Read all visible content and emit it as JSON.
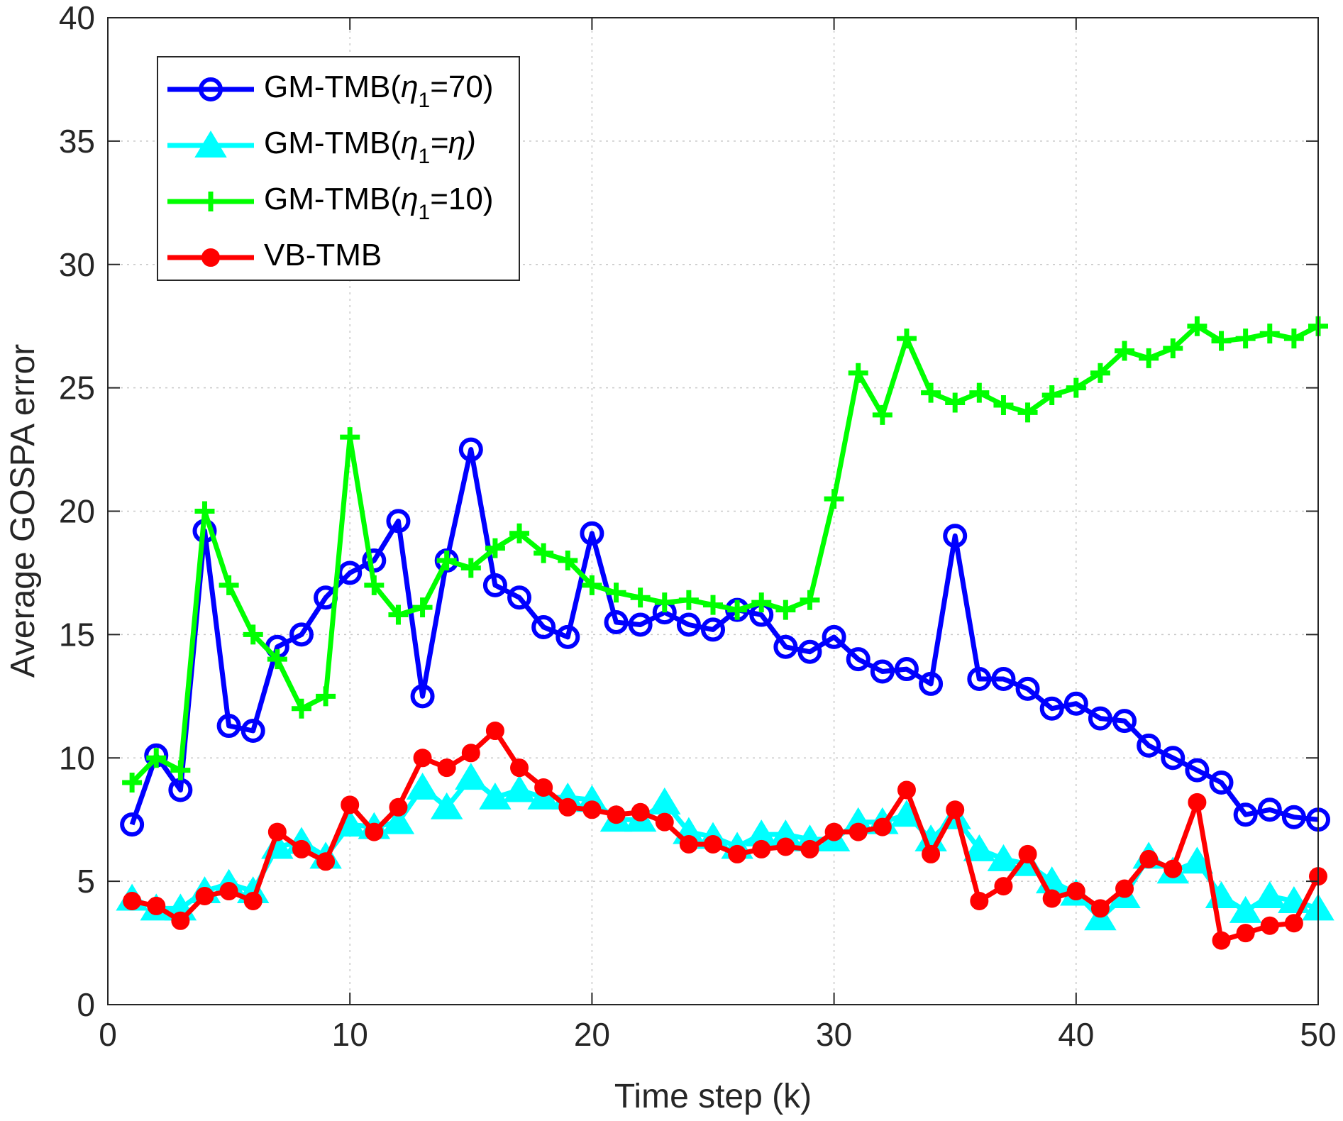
{
  "chart_data": {
    "type": "line",
    "title": "",
    "xlabel": "Time step (k)",
    "ylabel": "Average GOSPA error",
    "xlim": [
      0,
      50
    ],
    "ylim": [
      0,
      40
    ],
    "xticks": [
      "0",
      "10",
      "20",
      "30",
      "40",
      "50"
    ],
    "yticks": [
      "0",
      "5",
      "10",
      "15",
      "20",
      "25",
      "30",
      "35",
      "40"
    ],
    "grid": true,
    "legend_position": "top-left",
    "x": [
      1,
      2,
      3,
      4,
      5,
      6,
      7,
      8,
      9,
      10,
      11,
      12,
      13,
      14,
      15,
      16,
      17,
      18,
      19,
      20,
      21,
      22,
      23,
      24,
      25,
      26,
      27,
      28,
      29,
      30,
      31,
      32,
      33,
      34,
      35,
      36,
      37,
      38,
      39,
      40,
      41,
      42,
      43,
      44,
      45,
      46,
      47,
      48,
      49,
      50
    ],
    "series": [
      {
        "name": "GM-TMB(η1=70)",
        "legend_prefix": "GM-TMB(",
        "legend_symbol": "η",
        "legend_subscript": "1",
        "legend_suffix": "=70)",
        "color": "#0000ff",
        "marker": "circle",
        "values": [
          7.3,
          10.1,
          8.7,
          19.2,
          11.3,
          11.1,
          14.5,
          15.0,
          16.5,
          17.5,
          18.0,
          19.6,
          12.5,
          18.0,
          22.5,
          17.0,
          16.5,
          15.3,
          14.9,
          19.1,
          15.5,
          15.4,
          15.9,
          15.4,
          15.2,
          16.0,
          15.8,
          14.5,
          14.3,
          14.9,
          14.0,
          13.5,
          13.6,
          13.0,
          19.0,
          13.2,
          13.2,
          12.8,
          12.0,
          12.2,
          11.6,
          11.5,
          10.5,
          10.0,
          9.5,
          9.0,
          7.7,
          7.9,
          7.6,
          7.5
        ]
      },
      {
        "name": "GM-TMB(η1=η)",
        "legend_prefix": "GM-TMB(",
        "legend_symbol": "η",
        "legend_subscript": "1",
        "legend_suffix": "=η)",
        "color": "#00ffff",
        "marker": "triangle",
        "values": [
          4.3,
          3.9,
          3.9,
          4.6,
          4.9,
          4.6,
          6.4,
          6.6,
          6.0,
          7.3,
          7.2,
          7.4,
          8.8,
          8.0,
          9.2,
          8.4,
          8.7,
          8.4,
          8.4,
          8.3,
          7.5,
          7.5,
          8.2,
          7.0,
          6.8,
          6.4,
          6.9,
          6.9,
          6.7,
          6.7,
          7.4,
          7.4,
          7.7,
          6.7,
          7.6,
          6.3,
          5.9,
          5.7,
          5.0,
          4.5,
          3.5,
          4.4,
          6.0,
          5.4,
          5.8,
          4.4,
          3.8,
          4.4,
          4.2,
          3.9
        ]
      },
      {
        "name": "GM-TMB(η1=10)",
        "legend_prefix": "GM-TMB(",
        "legend_symbol": "η",
        "legend_subscript": "1",
        "legend_suffix": "=10)",
        "color": "#00ff00",
        "marker": "plus",
        "values": [
          9.0,
          10.0,
          9.5,
          20.0,
          17.0,
          15.0,
          14.0,
          12.0,
          12.5,
          23.0,
          17.0,
          15.8,
          16.1,
          18.0,
          17.7,
          18.5,
          19.1,
          18.3,
          18.0,
          17.0,
          16.7,
          16.5,
          16.3,
          16.4,
          16.2,
          16.0,
          16.3,
          16.0,
          16.4,
          20.5,
          25.6,
          23.9,
          27.0,
          24.8,
          24.4,
          24.8,
          24.3,
          24.0,
          24.7,
          25.0,
          25.6,
          26.5,
          26.2,
          26.6,
          27.5,
          26.9,
          27.0,
          27.2,
          27.0,
          27.5
        ]
      },
      {
        "name": "VB-TMB",
        "legend_prefix": "VB-TMB",
        "legend_symbol": "",
        "legend_subscript": "",
        "legend_suffix": "",
        "color": "#ff0000",
        "marker": "dot",
        "values": [
          4.2,
          4.0,
          3.4,
          4.4,
          4.6,
          4.2,
          7.0,
          6.3,
          5.8,
          8.1,
          7.0,
          8.0,
          10.0,
          9.6,
          10.2,
          11.1,
          9.6,
          8.8,
          8.0,
          7.9,
          7.7,
          7.8,
          7.4,
          6.5,
          6.5,
          6.1,
          6.3,
          6.4,
          6.3,
          7.0,
          7.0,
          7.2,
          8.7,
          6.1,
          7.9,
          4.2,
          4.8,
          6.1,
          4.3,
          4.6,
          3.9,
          4.7,
          5.9,
          5.5,
          8.2,
          2.6,
          2.9,
          3.2,
          3.3,
          5.2
        ]
      }
    ]
  }
}
